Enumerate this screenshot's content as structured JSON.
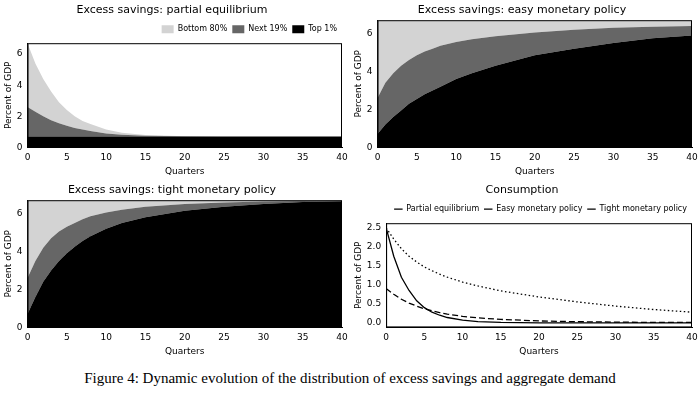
{
  "caption": "Figure 4: Dynamic evolution of the distribution of excess savings and aggregate demand",
  "chart_data": [
    {
      "type": "area",
      "title": "Excess savings: partial equilibrium",
      "xlabel": "Quarters",
      "ylabel": "Percent of GDP",
      "stacked": true,
      "grid": false,
      "legend": "upper right",
      "x": [
        0,
        1,
        2,
        3,
        4,
        5,
        6,
        7,
        8,
        10,
        12,
        15,
        20,
        25,
        30,
        35,
        40
      ],
      "xlim": [
        0,
        40
      ],
      "xticks": [
        0,
        5,
        10,
        15,
        20,
        25,
        30,
        35,
        40
      ],
      "ylim": [
        0,
        6.7
      ],
      "yticks": [
        0,
        2,
        4,
        6
      ],
      "series": [
        {
          "name": "Top 1%",
          "color": "#000000",
          "values": [
            0.7,
            0.7,
            0.7,
            0.7,
            0.7,
            0.7,
            0.7,
            0.7,
            0.7,
            0.7,
            0.7,
            0.7,
            0.7,
            0.7,
            0.7,
            0.7,
            0.7
          ]
        },
        {
          "name": "Next 19%",
          "color": "#666666",
          "values": [
            1.9,
            1.6,
            1.3,
            1.05,
            0.85,
            0.7,
            0.55,
            0.45,
            0.35,
            0.2,
            0.12,
            0.05,
            0.01,
            0,
            0,
            0,
            0
          ]
        },
        {
          "name": "Bottom 80%",
          "color": "#d3d3d3",
          "values": [
            4.1,
            3.1,
            2.4,
            1.85,
            1.35,
            1.0,
            0.75,
            0.55,
            0.45,
            0.25,
            0.13,
            0.05,
            0.01,
            0,
            0,
            0,
            0
          ]
        }
      ]
    },
    {
      "type": "area",
      "title": "Excess savings: easy monetary policy",
      "xlabel": "Quarters",
      "ylabel": "Percent of GDP",
      "stacked": true,
      "grid": false,
      "x": [
        0,
        1,
        2,
        3,
        4,
        5,
        6,
        7,
        8,
        10,
        12,
        15,
        20,
        25,
        30,
        35,
        40
      ],
      "xlim": [
        0,
        40
      ],
      "xticks": [
        0,
        5,
        10,
        15,
        20,
        25,
        30,
        35,
        40
      ],
      "ylim": [
        0,
        6.7
      ],
      "yticks": [
        0,
        2,
        4,
        6
      ],
      "series": [
        {
          "color": "#000000",
          "values": [
            0.7,
            1.2,
            1.6,
            1.95,
            2.3,
            2.55,
            2.8,
            3.0,
            3.2,
            3.6,
            3.9,
            4.3,
            4.85,
            5.2,
            5.5,
            5.75,
            5.9
          ]
        },
        {
          "color": "#666666",
          "values": [
            1.9,
            2.2,
            2.3,
            2.35,
            2.3,
            2.3,
            2.25,
            2.2,
            2.15,
            1.95,
            1.8,
            1.55,
            1.2,
            1.0,
            0.8,
            0.6,
            0.5
          ]
        },
        {
          "color": "#d3d3d3",
          "values": [
            4.1,
            3.3,
            2.8,
            2.4,
            2.1,
            1.85,
            1.65,
            1.5,
            1.35,
            1.15,
            1.0,
            0.85,
            0.65,
            0.5,
            0.4,
            0.35,
            0.3
          ]
        }
      ]
    },
    {
      "type": "area",
      "title": "Excess savings: tight monetary policy",
      "xlabel": "Quarters",
      "ylabel": "Percent of GDP",
      "stacked": true,
      "grid": false,
      "x": [
        0,
        1,
        2,
        3,
        4,
        5,
        6,
        7,
        8,
        10,
        12,
        15,
        20,
        25,
        30,
        35,
        40
      ],
      "xlim": [
        0,
        40
      ],
      "xticks": [
        0,
        5,
        10,
        15,
        20,
        25,
        30,
        35,
        40
      ],
      "ylim": [
        0,
        6.7
      ],
      "yticks": [
        0,
        2,
        4,
        6
      ],
      "series": [
        {
          "color": "#000000",
          "values": [
            0.7,
            1.6,
            2.4,
            3.0,
            3.5,
            3.9,
            4.25,
            4.55,
            4.8,
            5.2,
            5.5,
            5.8,
            6.15,
            6.35,
            6.5,
            6.6,
            6.65
          ]
        },
        {
          "color": "#666666",
          "values": [
            1.9,
            1.9,
            1.8,
            1.7,
            1.55,
            1.4,
            1.25,
            1.15,
            1.05,
            0.85,
            0.7,
            0.55,
            0.35,
            0.23,
            0.13,
            0.06,
            0.03
          ]
        },
        {
          "color": "#d3d3d3",
          "values": [
            4.1,
            3.2,
            2.5,
            2.0,
            1.65,
            1.4,
            1.2,
            1.0,
            0.85,
            0.65,
            0.5,
            0.35,
            0.2,
            0.12,
            0.07,
            0.04,
            0.02
          ]
        }
      ]
    },
    {
      "type": "line",
      "title": "Consumption",
      "xlabel": "Quarters",
      "ylabel": "Percent of GDP",
      "grid": false,
      "legend": "upper right",
      "x": [
        0,
        1,
        2,
        3,
        4,
        5,
        6,
        7,
        8,
        10,
        12,
        15,
        20,
        25,
        30,
        35,
        40
      ],
      "xlim": [
        0,
        40
      ],
      "xticks": [
        0,
        5,
        10,
        15,
        20,
        25,
        30,
        35,
        40
      ],
      "ylim": [
        -0.12,
        2.62
      ],
      "yticks": [
        {
          "value": 0,
          "label": "0.0"
        },
        0.5,
        {
          "value": 1,
          "label": "1.0"
        },
        1.5,
        {
          "value": 2,
          "label": "2.0"
        },
        2.5
      ],
      "series": [
        {
          "name": "Partial equilibrium",
          "color": "#000000",
          "line_style": "solid",
          "values": [
            2.5,
            1.75,
            1.2,
            0.85,
            0.58,
            0.4,
            0.28,
            0.2,
            0.14,
            0.07,
            0.03,
            0.01,
            0,
            0,
            0,
            0,
            0
          ]
        },
        {
          "name": "Easy monetary policy",
          "color": "#000000",
          "line_style": "dotted",
          "values": [
            2.5,
            2.2,
            1.95,
            1.75,
            1.6,
            1.47,
            1.37,
            1.28,
            1.2,
            1.07,
            0.97,
            0.84,
            0.68,
            0.55,
            0.44,
            0.35,
            0.28
          ]
        },
        {
          "name": "Tight monetary policy",
          "color": "#000000",
          "line_style": "dashed",
          "values": [
            0.9,
            0.75,
            0.62,
            0.52,
            0.44,
            0.37,
            0.32,
            0.27,
            0.23,
            0.17,
            0.13,
            0.09,
            0.05,
            0.03,
            0.02,
            0.01,
            0.01
          ]
        }
      ]
    }
  ]
}
